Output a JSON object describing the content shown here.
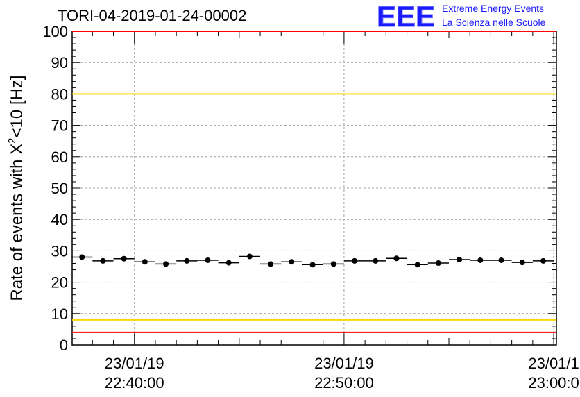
{
  "header": {
    "title": "TORI-04-2019-01-24-00002",
    "logo_text": "EEE",
    "logo_line1": "Extreme Energy Events",
    "logo_line2": "La Scienza nelle Scuole"
  },
  "colors": {
    "logo": "#1a1aff",
    "limit_red": "#ff0000",
    "limit_yellow": "#ffd700",
    "marker": "#000000",
    "grid": "#a0a0a0"
  },
  "chart_data": {
    "type": "scatter",
    "title": "TORI-04-2019-01-24-00002",
    "ylabel_prefix": "Rate of events with X",
    "ylabel_sup": "2",
    "ylabel_suffix": "<10 [Hz]",
    "xlabel": "",
    "ylim": [
      0,
      100
    ],
    "yticks": [
      0,
      10,
      20,
      30,
      40,
      50,
      60,
      70,
      80,
      90,
      100
    ],
    "xlim_minutes": [
      -2.97,
      20.13
    ],
    "xticks": [
      {
        "minute": 0,
        "date": "23/01/19",
        "time": "22:40:00"
      },
      {
        "minute": 10,
        "date": "23/01/19",
        "time": "22:50:00"
      },
      {
        "minute": 20,
        "date": "23/01/1",
        "time": "23:00:0"
      }
    ],
    "grid": true,
    "reference_lines": [
      {
        "y": 4,
        "color": "red"
      },
      {
        "y": 8,
        "color": "yellow"
      },
      {
        "y": 80,
        "color": "yellow"
      },
      {
        "y": 100,
        "color": "red"
      }
    ],
    "series": [
      {
        "name": "rate",
        "x_minutes": [
          -2.5,
          -1.5,
          -0.5,
          0.5,
          1.5,
          2.5,
          3.5,
          4.5,
          5.5,
          6.5,
          7.5,
          8.5,
          9.5,
          10.5,
          11.5,
          12.5,
          13.5,
          14.5,
          15.5,
          16.5,
          17.5,
          18.5,
          19.5
        ],
        "values": [
          28.0,
          26.8,
          27.5,
          26.5,
          25.8,
          26.8,
          27.0,
          26.2,
          28.2,
          25.8,
          26.5,
          25.6,
          25.8,
          26.8,
          26.8,
          27.6,
          25.6,
          26.1,
          27.2,
          27.0,
          27.0,
          26.3,
          26.8
        ],
        "bin_width_minutes": 1.0
      }
    ]
  }
}
